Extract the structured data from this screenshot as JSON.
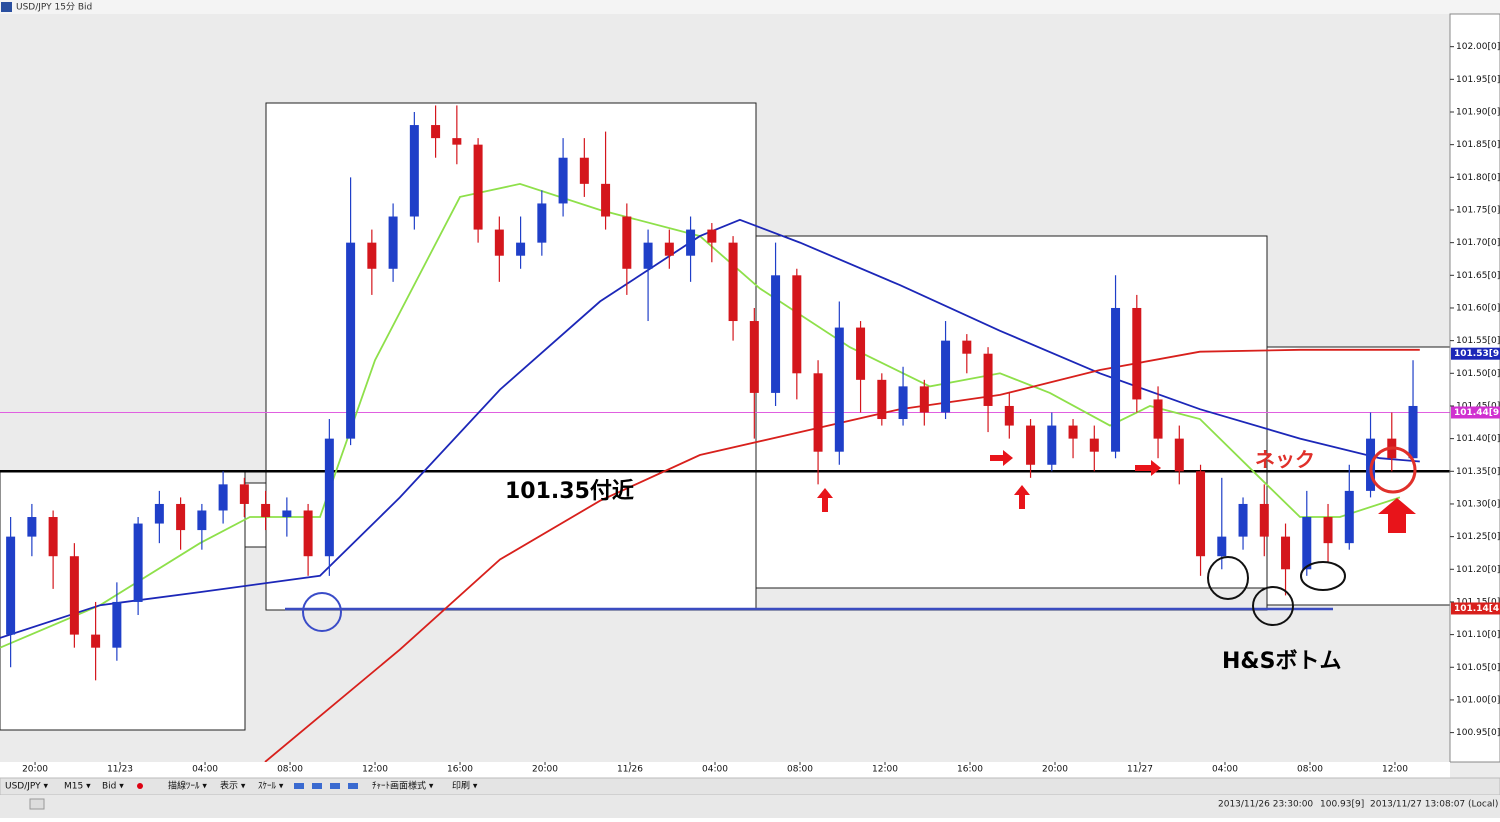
{
  "chart_data": {
    "type": "candlestick",
    "title": "USD/JPY 15分 Bid",
    "up_color": "#1f3fc8",
    "down_color": "#d4161c",
    "xlim": [
      -0.5,
      67.74
    ],
    "xticks": [
      {
        "value": 1.15,
        "label": "20:00"
      },
      {
        "value": 5.15,
        "label": "11/23"
      },
      {
        "value": 9.15,
        "label": "04:00"
      },
      {
        "value": 13.15,
        "label": "08:00"
      },
      {
        "value": 17.15,
        "label": "12:00"
      },
      {
        "value": 21.15,
        "label": "16:00"
      },
      {
        "value": 25.15,
        "label": "20:00"
      },
      {
        "value": 29.15,
        "label": "11/26"
      },
      {
        "value": 33.15,
        "label": "04:00"
      },
      {
        "value": 37.15,
        "label": "08:00"
      },
      {
        "value": 41.15,
        "label": "12:00"
      },
      {
        "value": 45.15,
        "label": "16:00"
      },
      {
        "value": 49.15,
        "label": "20:00"
      },
      {
        "value": 53.15,
        "label": "11/27"
      },
      {
        "value": 57.15,
        "label": "04:00"
      },
      {
        "value": 61.15,
        "label": "08:00"
      },
      {
        "value": 65.15,
        "label": "12:00"
      }
    ],
    "ylim": [
      100.905,
      102.05
    ],
    "yticks": [
      {
        "value": 100.95,
        "label": "100.95[0]"
      },
      {
        "value": 101.0,
        "label": "101.00[0]"
      },
      {
        "value": 101.05,
        "label": "101.05[0]"
      },
      {
        "value": 101.1,
        "label": "101.10[0]"
      },
      {
        "value": 101.15,
        "label": "101.15[0]"
      },
      {
        "value": 101.2,
        "label": "101.20[0]"
      },
      {
        "value": 101.25,
        "label": "101.25[0]"
      },
      {
        "value": 101.3,
        "label": "101.30[0]"
      },
      {
        "value": 101.35,
        "label": "101.35[0]"
      },
      {
        "value": 101.4,
        "label": "101.40[0]"
      },
      {
        "value": 101.45,
        "label": "101.45[0]"
      },
      {
        "value": 101.5,
        "label": "101.50[0]"
      },
      {
        "value": 101.55,
        "label": "101.55[0]"
      },
      {
        "value": 101.6,
        "label": "101.60[0]"
      },
      {
        "value": 101.65,
        "label": "101.65[0]"
      },
      {
        "value": 101.7,
        "label": "101.70[0]"
      },
      {
        "value": 101.75,
        "label": "101.75[0]"
      },
      {
        "value": 101.8,
        "label": "101.80[0]"
      },
      {
        "value": 101.85,
        "label": "101.85[0]"
      },
      {
        "value": 101.9,
        "label": "101.90[0]"
      },
      {
        "value": 101.95,
        "label": "101.95[0]"
      },
      {
        "value": 102.0,
        "label": "102.00[0]"
      }
    ],
    "candles": [
      [
        101.1,
        101.28,
        101.05,
        101.25
      ],
      [
        101.25,
        101.3,
        101.22,
        101.28
      ],
      [
        101.28,
        101.29,
        101.17,
        101.22
      ],
      [
        101.22,
        101.24,
        101.08,
        101.1
      ],
      [
        101.1,
        101.15,
        101.03,
        101.08
      ],
      [
        101.08,
        101.18,
        101.06,
        101.15
      ],
      [
        101.15,
        101.28,
        101.13,
        101.27
      ],
      [
        101.27,
        101.32,
        101.24,
        101.3
      ],
      [
        101.3,
        101.31,
        101.23,
        101.26
      ],
      [
        101.26,
        101.3,
        101.23,
        101.29
      ],
      [
        101.29,
        101.35,
        101.27,
        101.33
      ],
      [
        101.33,
        101.34,
        101.28,
        101.3
      ],
      [
        101.3,
        101.32,
        101.26,
        101.28
      ],
      [
        101.28,
        101.31,
        101.25,
        101.29
      ],
      [
        101.29,
        101.3,
        101.19,
        101.22
      ],
      [
        101.22,
        101.43,
        101.19,
        101.4
      ],
      [
        101.4,
        101.8,
        101.39,
        101.7
      ],
      [
        101.7,
        101.72,
        101.62,
        101.66
      ],
      [
        101.66,
        101.76,
        101.64,
        101.74
      ],
      [
        101.74,
        101.9,
        101.72,
        101.88
      ],
      [
        101.88,
        101.91,
        101.83,
        101.86
      ],
      [
        101.86,
        101.91,
        101.82,
        101.85
      ],
      [
        101.85,
        101.86,
        101.7,
        101.72
      ],
      [
        101.72,
        101.74,
        101.64,
        101.68
      ],
      [
        101.68,
        101.74,
        101.66,
        101.7
      ],
      [
        101.7,
        101.78,
        101.68,
        101.76
      ],
      [
        101.76,
        101.86,
        101.74,
        101.83
      ],
      [
        101.83,
        101.86,
        101.77,
        101.79
      ],
      [
        101.79,
        101.87,
        101.72,
        101.74
      ],
      [
        101.74,
        101.76,
        101.62,
        101.66
      ],
      [
        101.66,
        101.72,
        101.58,
        101.7
      ],
      [
        101.7,
        101.72,
        101.66,
        101.68
      ],
      [
        101.68,
        101.74,
        101.64,
        101.72
      ],
      [
        101.72,
        101.73,
        101.67,
        101.7
      ],
      [
        101.7,
        101.71,
        101.55,
        101.58
      ],
      [
        101.58,
        101.6,
        101.4,
        101.47
      ],
      [
        101.47,
        101.7,
        101.45,
        101.65
      ],
      [
        101.65,
        101.66,
        101.46,
        101.5
      ],
      [
        101.5,
        101.52,
        101.33,
        101.38
      ],
      [
        101.38,
        101.61,
        101.36,
        101.57
      ],
      [
        101.57,
        101.58,
        101.44,
        101.49
      ],
      [
        101.49,
        101.5,
        101.42,
        101.43
      ],
      [
        101.43,
        101.51,
        101.42,
        101.48
      ],
      [
        101.48,
        101.49,
        101.42,
        101.44
      ],
      [
        101.44,
        101.58,
        101.43,
        101.55
      ],
      [
        101.55,
        101.56,
        101.5,
        101.53
      ],
      [
        101.53,
        101.54,
        101.41,
        101.45
      ],
      [
        101.45,
        101.47,
        101.4,
        101.42
      ],
      [
        101.42,
        101.43,
        101.34,
        101.36
      ],
      [
        101.36,
        101.44,
        101.35,
        101.42
      ],
      [
        101.42,
        101.43,
        101.37,
        101.4
      ],
      [
        101.4,
        101.42,
        101.35,
        101.38
      ],
      [
        101.38,
        101.65,
        101.37,
        101.6
      ],
      [
        101.6,
        101.62,
        101.44,
        101.46
      ],
      [
        101.46,
        101.48,
        101.37,
        101.4
      ],
      [
        101.4,
        101.42,
        101.33,
        101.35
      ],
      [
        101.35,
        101.36,
        101.19,
        101.22
      ],
      [
        101.22,
        101.34,
        101.2,
        101.25
      ],
      [
        101.25,
        101.31,
        101.23,
        101.3
      ],
      [
        101.3,
        101.33,
        101.22,
        101.25
      ],
      [
        101.25,
        101.27,
        101.16,
        101.2
      ],
      [
        101.2,
        101.32,
        101.19,
        101.28
      ],
      [
        101.28,
        101.3,
        101.21,
        101.24
      ],
      [
        101.24,
        101.36,
        101.23,
        101.32
      ],
      [
        101.32,
        101.44,
        101.31,
        101.4
      ],
      [
        101.4,
        101.44,
        101.35,
        101.37
      ],
      [
        101.37,
        101.52,
        101.37,
        101.45
      ]
    ],
    "lines": [
      {
        "color": "#8ee04a",
        "x": [
          -0.5,
          4.21,
          8.91,
          11.26,
          14.56,
          17.15,
          21.15,
          23.97,
          27.74,
          32.44,
          35.26,
          39.5,
          43.26,
          46.56,
          48.91,
          51.74,
          53.62,
          55.97,
          58.79,
          60.68,
          62.56,
          65.38
        ],
        "values": [
          101.08,
          101.145,
          101.24,
          101.28,
          101.28,
          101.52,
          101.77,
          101.79,
          101.75,
          101.71,
          101.63,
          101.54,
          101.48,
          101.5,
          101.47,
          101.42,
          101.45,
          101.43,
          101.34,
          101.28,
          101.28,
          101.31
        ]
      },
      {
        "color": "#1c27b8",
        "x": [
          -0.5,
          4.21,
          8.91,
          14.56,
          18.32,
          23.03,
          27.74,
          32.44,
          34.32,
          37.15,
          41.85,
          46.56,
          51.26,
          55.97,
          60.68,
          64.44,
          66.32
        ],
        "values": [
          101.095,
          101.145,
          101.165,
          101.19,
          101.31,
          101.475,
          101.61,
          101.71,
          101.735,
          101.7,
          101.635,
          101.565,
          101.5,
          101.445,
          101.4,
          101.37,
          101.365
        ]
      },
      {
        "color": "#d8201c",
        "x": [
          11.97,
          18.32,
          23.03,
          27.74,
          32.44,
          37.15,
          41.85,
          46.56,
          51.26,
          55.97,
          60.68,
          66.32
        ],
        "values": [
          100.905,
          101.077,
          101.215,
          101.305,
          101.375,
          101.41,
          101.445,
          101.467,
          101.505,
          101.533,
          101.536,
          101.536
        ]
      }
    ],
    "levels": [
      {
        "value": 101.35,
        "color": "#000000"
      },
      {
        "value": 101.44,
        "color": "#e060e0"
      }
    ],
    "price_tags": [
      {
        "value": 101.53,
        "label": "101.53[9",
        "color": "#1c27b8"
      },
      {
        "value": 101.44,
        "label": "101.44[9",
        "color": "#d030d0"
      },
      {
        "value": 101.14,
        "label": "101.14[4",
        "color": "#d8201c"
      }
    ],
    "annotations": [
      "101.35付近",
      "ネック",
      "H&Sボトム"
    ]
  },
  "toolbar": [
    "USD/JPY ▾",
    "M15 ▾",
    "Bid ▾",
    "描線ﾂｰﾙ ▾",
    "表示 ▾",
    "ｽｹｰﾙ ▾",
    "ﾁｬｰﾄ画面様式 ▾",
    "印刷 ▾"
  ],
  "status": [
    "2013/11/26 23:30:00",
    "100.93[9]",
    "2013/11/27 13:08:07 (Local)"
  ]
}
